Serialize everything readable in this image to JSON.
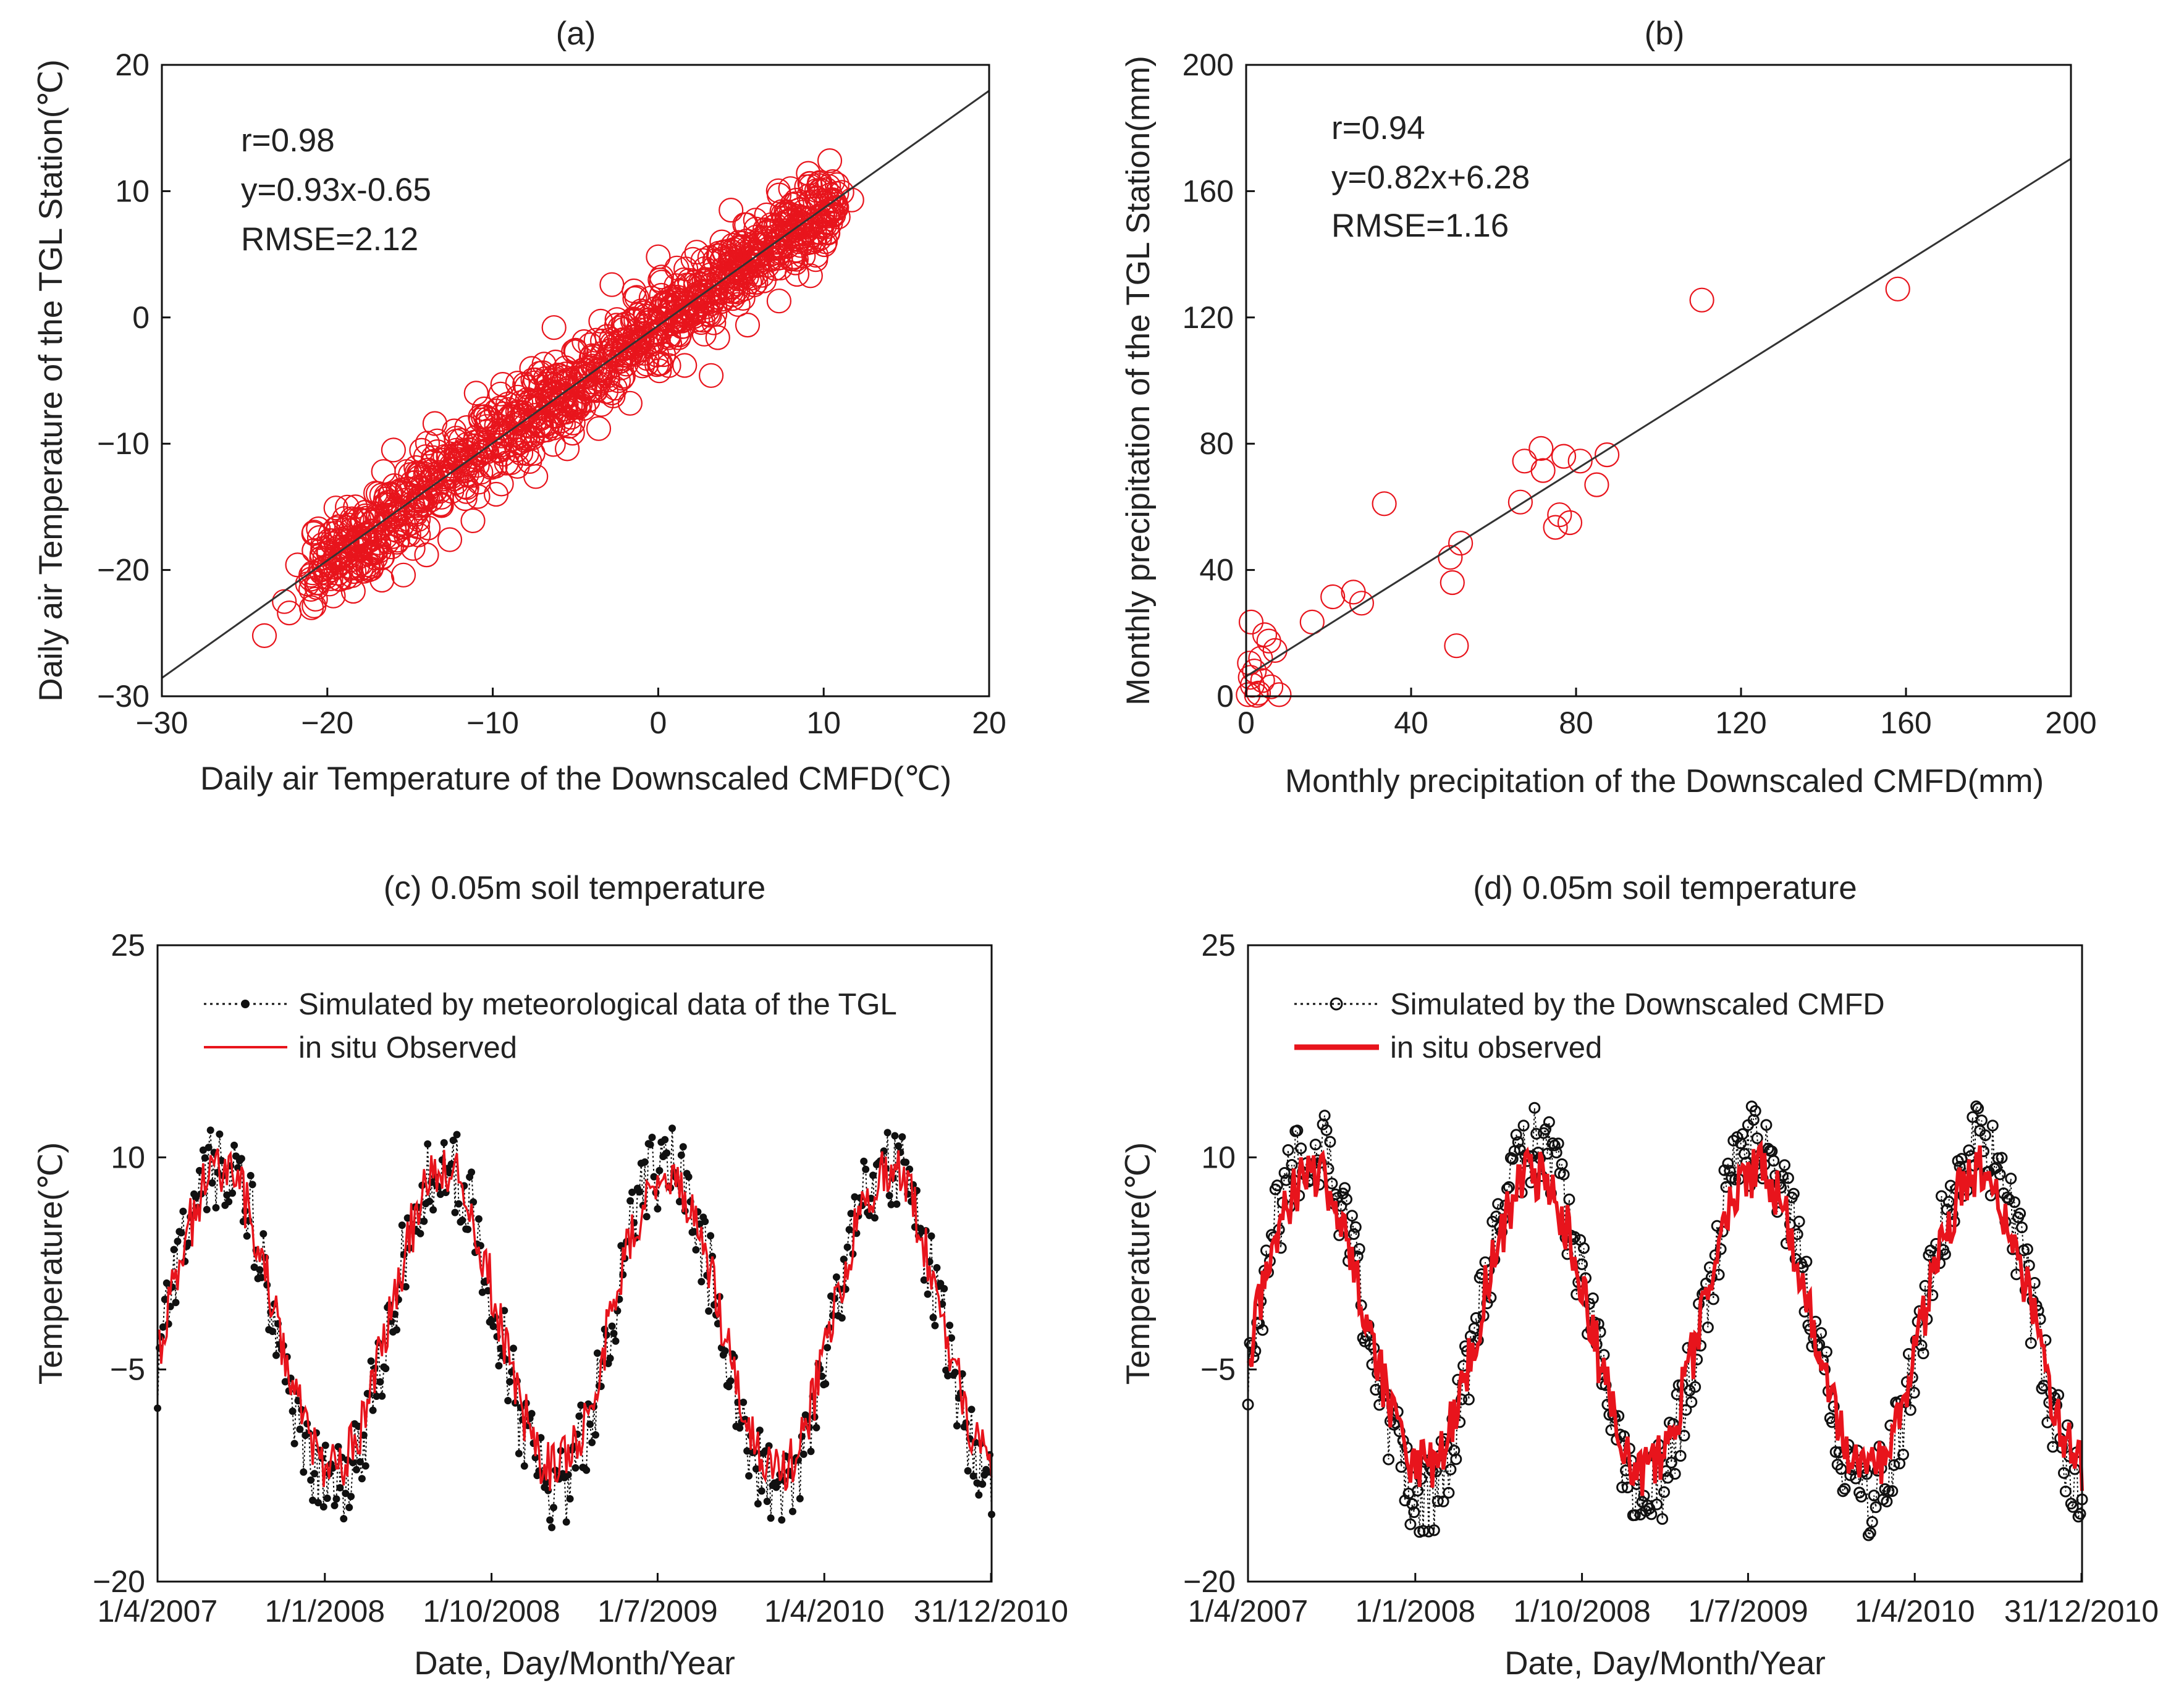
{
  "chart_data": [
    {
      "id": "a",
      "type": "scatter",
      "title": "(a)",
      "xlabel": "Daily air Temperature of the Downscaled CMFD(℃)",
      "ylabel": "Daily air Temperature of the TGL Station(℃)",
      "xlim": [
        -30,
        20
      ],
      "ylim": [
        -30,
        20
      ],
      "xticks": [
        -30,
        -20,
        -10,
        0,
        10,
        20
      ],
      "yticks": [
        -30,
        -20,
        -10,
        0,
        10,
        20
      ],
      "xtick_labels": [
        "−30",
        "−20",
        "−10",
        "0",
        "10",
        "20"
      ],
      "ytick_labels": [
        "−30",
        "−20",
        "−10",
        "0",
        "10",
        "20"
      ],
      "annotations": [
        "r=0.98",
        "y=0.93x-0.65",
        "RMSE=2.12"
      ],
      "fit": {
        "slope": 0.93,
        "intercept": -0.65
      },
      "marker": {
        "shape": "circle",
        "color": "#e8141c"
      },
      "points": [
        [
          -23.8,
          -25.2
        ],
        [
          -22.3,
          -23.4
        ],
        [
          -21.8,
          -19.6
        ],
        [
          -22.6,
          -22.5
        ],
        [
          -21.2,
          -21.1
        ],
        [
          -20.4,
          -20.0
        ],
        [
          -19.9,
          -18.6
        ],
        [
          -19.3,
          -20.7
        ],
        [
          -18.6,
          -16.9
        ],
        [
          -17.8,
          -20.1
        ],
        [
          -17.3,
          -16.2
        ],
        [
          -16.7,
          -20.8
        ],
        [
          -16.2,
          -14.6
        ],
        [
          -15.8,
          -17.8
        ],
        [
          -15.4,
          -20.4
        ],
        [
          -14.9,
          -13.1
        ],
        [
          -14.5,
          -16.0
        ],
        [
          -14.0,
          -18.8
        ],
        [
          -13.6,
          -11.4
        ],
        [
          -13.1,
          -14.9
        ],
        [
          -12.6,
          -17.6
        ],
        [
          -12.2,
          -9.8
        ],
        [
          -11.7,
          -13.4
        ],
        [
          -11.2,
          -16.1
        ],
        [
          -10.8,
          -10.9
        ],
        [
          -10.3,
          -8.0
        ],
        [
          -9.8,
          -14.0
        ],
        [
          -9.4,
          -5.3
        ],
        [
          -8.9,
          -11.5
        ],
        [
          -8.4,
          -9.4
        ],
        [
          -7.9,
          -6.5
        ],
        [
          -7.4,
          -12.6
        ],
        [
          -6.9,
          -3.7
        ],
        [
          -6.5,
          -8.6
        ],
        [
          -6.0,
          -5.9
        ],
        [
          -5.5,
          -10.4
        ],
        [
          -5.0,
          -2.6
        ],
        [
          -4.5,
          -7.2
        ],
        [
          -4.1,
          -4.0
        ],
        [
          -3.6,
          -8.8
        ],
        [
          -3.1,
          -1.5
        ],
        [
          -2.6,
          -5.6
        ],
        [
          -2.1,
          -3.0
        ],
        [
          -1.7,
          -6.8
        ],
        [
          -1.2,
          0.2
        ],
        [
          -0.7,
          -3.7
        ],
        [
          -0.2,
          -1.2
        ],
        [
          0.2,
          3.2
        ],
        [
          0.7,
          -2.1
        ],
        [
          1.2,
          1.0
        ],
        [
          1.6,
          -3.8
        ],
        [
          2.1,
          4.6
        ],
        [
          2.6,
          -0.4
        ],
        [
          3.1,
          2.1
        ],
        [
          3.6,
          -1.6
        ],
        [
          4.0,
          5.2
        ],
        [
          4.5,
          1.5
        ],
        [
          5.0,
          3.6
        ],
        [
          5.4,
          -0.6
        ],
        [
          5.9,
          7.0
        ],
        [
          6.4,
          2.9
        ],
        [
          6.8,
          5.0
        ],
        [
          7.3,
          1.3
        ],
        [
          7.8,
          8.2
        ],
        [
          8.2,
          4.8
        ],
        [
          8.7,
          6.6
        ],
        [
          9.2,
          3.3
        ],
        [
          9.6,
          9.4
        ],
        [
          10.1,
          6.0
        ],
        [
          10.6,
          8.1
        ],
        [
          11.1,
          9.9
        ],
        [
          11.7,
          9.3
        ],
        [
          10.4,
          9.7
        ],
        [
          3.2,
          -4.6
        ],
        [
          -2.8,
          2.6
        ],
        [
          -8.5,
          -5.2
        ],
        [
          -13.5,
          -8.4
        ],
        [
          -18.3,
          -15.0
        ],
        [
          -16.0,
          -10.5
        ],
        [
          -11.0,
          -6.0
        ],
        [
          -6.3,
          -0.8
        ],
        [
          0.0,
          4.8
        ],
        [
          4.4,
          8.5
        ],
        [
          8.0,
          10.2
        ],
        [
          -20.8,
          -17.0
        ],
        [
          -15.2,
          -12.2
        ],
        [
          -9.8,
          -7.4
        ],
        [
          -4.5,
          -4.5
        ],
        [
          0.8,
          0.9
        ],
        [
          5.6,
          5.4
        ],
        [
          9.0,
          7.2
        ],
        [
          -18.0,
          -18.0
        ],
        [
          -12.5,
          -12.0
        ],
        [
          -7.2,
          -7.0
        ],
        [
          -2.0,
          -2.4
        ],
        [
          2.9,
          3.0
        ],
        [
          7.1,
          6.4
        ]
      ]
    },
    {
      "id": "b",
      "type": "scatter",
      "title": "(b)",
      "xlabel": "Monthly precipitation of the Downscaled CMFD(mm)",
      "ylabel": "Monthly precipitation of the TGL Station(mm)",
      "xlim": [
        0,
        200
      ],
      "ylim": [
        0,
        200
      ],
      "xticks": [
        0,
        40,
        80,
        120,
        160,
        200
      ],
      "yticks": [
        0,
        40,
        80,
        120,
        160,
        200
      ],
      "xtick_labels": [
        "0",
        "40",
        "80",
        "120",
        "160",
        "200"
      ],
      "ytick_labels": [
        "0",
        "40",
        "80",
        "120",
        "160",
        "200"
      ],
      "annotations": [
        "r=0.94",
        "y=0.82x+6.28",
        "RMSE=1.16"
      ],
      "fit": {
        "slope": 0.82,
        "intercept": 6.28
      },
      "marker": {
        "shape": "circle",
        "color": "#e8141c"
      },
      "points": [
        [
          0.5,
          0.5
        ],
        [
          1.5,
          3.5
        ],
        [
          2.0,
          8.0
        ],
        [
          3.0,
          1.0
        ],
        [
          0.8,
          10.5
        ],
        [
          1.2,
          23.5
        ],
        [
          4.5,
          19.5
        ],
        [
          3.5,
          12.0
        ],
        [
          5.5,
          17.5
        ],
        [
          6.0,
          3.0
        ],
        [
          8.0,
          0.5
        ],
        [
          2.5,
          0.3
        ],
        [
          1.0,
          6.0
        ],
        [
          4.0,
          5.0
        ],
        [
          7.0,
          14.5
        ],
        [
          16.0,
          23.5
        ],
        [
          21.0,
          31.5
        ],
        [
          26.0,
          33.0
        ],
        [
          28.0,
          29.5
        ],
        [
          33.5,
          61.0
        ],
        [
          49.5,
          44.0
        ],
        [
          50.0,
          36.0
        ],
        [
          51.0,
          16.0
        ],
        [
          52.0,
          48.5
        ],
        [
          66.5,
          61.5
        ],
        [
          67.5,
          74.5
        ],
        [
          71.5,
          78.5
        ],
        [
          72.0,
          71.5
        ],
        [
          75.0,
          53.5
        ],
        [
          76.0,
          57.5
        ],
        [
          77.0,
          76.0
        ],
        [
          78.5,
          55.0
        ],
        [
          81.0,
          74.5
        ],
        [
          85.0,
          67.0
        ],
        [
          87.5,
          76.5
        ],
        [
          110.5,
          125.5
        ],
        [
          158.0,
          129.0
        ]
      ]
    },
    {
      "id": "c",
      "type": "line",
      "title": "(c) 0.05m soil temperature",
      "xlabel": "Date, Day/Month/Year",
      "ylabel": "Temperature(℃)",
      "xlim": [
        "1/4/2007",
        "31/12/2010"
      ],
      "ylim": [
        -20,
        25
      ],
      "xtick_labels": [
        "1/4/2007",
        "1/1/2008",
        "1/10/2008",
        "1/7/2009",
        "1/4/2010",
        "31/12/2010"
      ],
      "yticks": [
        -20,
        -5,
        10,
        25
      ],
      "ytick_labels": [
        "−20",
        "−5",
        "10",
        "25"
      ],
      "series": [
        {
          "name": "Simulated by meteorological data of the TGL",
          "style": "dotted-with-circles",
          "color": "#000000",
          "amplitude": 11.5,
          "mean": -2.0
        },
        {
          "name": "in situ Observed",
          "style": "solid",
          "color": "#e8141c",
          "amplitude": 10.5,
          "mean": -1.5
        }
      ]
    },
    {
      "id": "d",
      "type": "line",
      "title": "(d) 0.05m soil temperature",
      "xlabel": "Date, Day/Month/Year",
      "ylabel": "Temperature(℃)",
      "xlim": [
        "1/4/2007",
        "31/12/2010"
      ],
      "ylim": [
        -20,
        25
      ],
      "xtick_labels": [
        "1/4/2007",
        "1/1/2008",
        "1/10/2008",
        "1/7/2009",
        "1/4/2010",
        "31/12/2010"
      ],
      "yticks": [
        -20,
        -5,
        10,
        25
      ],
      "ytick_labels": [
        "−20",
        "−5",
        "10",
        "25"
      ],
      "series": [
        {
          "name": "Simulated by the Downscaled CMFD",
          "style": "dotted-with-circles",
          "color": "#000000",
          "amplitude": 12.5,
          "mean": -1.5
        },
        {
          "name": "in situ observed",
          "style": "solid-thick",
          "color": "#e8141c",
          "amplitude": 10.5,
          "mean": -1.5
        }
      ]
    }
  ]
}
